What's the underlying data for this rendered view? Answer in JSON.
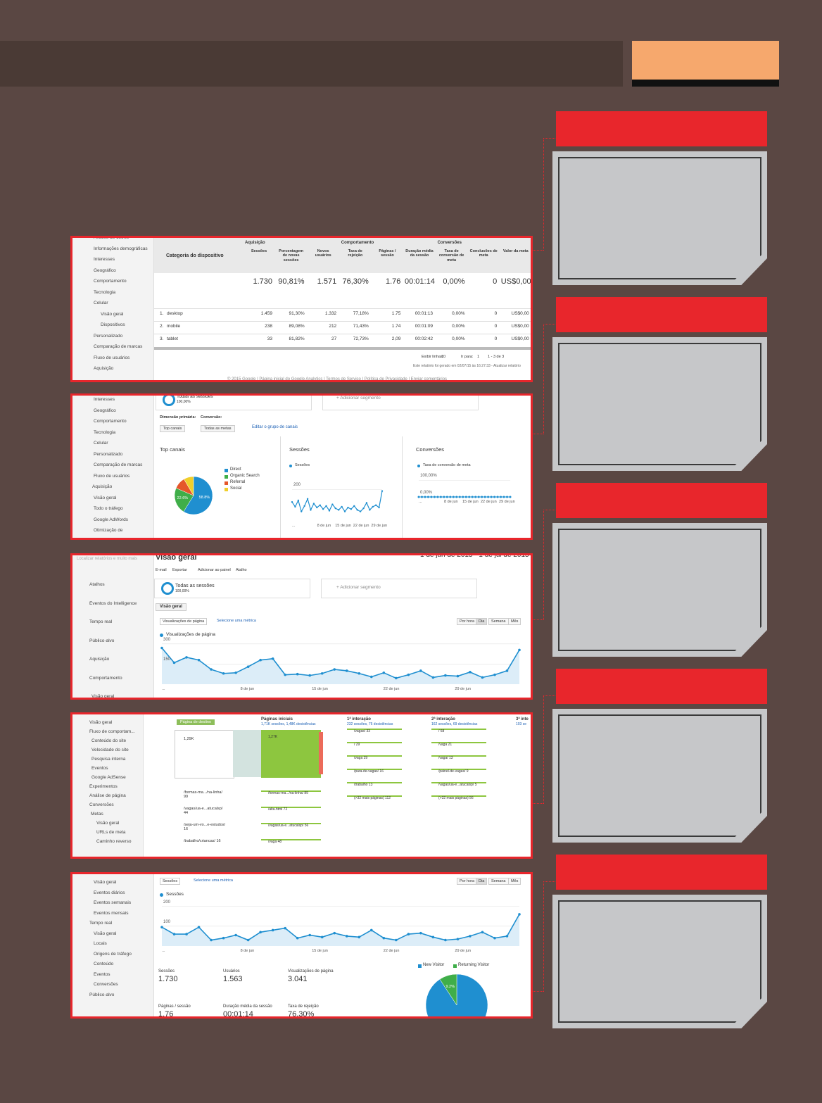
{
  "panel_table": {
    "sidebar": [
      "Análise de coorte",
      "Informações demográficas",
      "Interesses",
      "Geográfico",
      "Comportamento",
      "Tecnologia",
      "Celular",
      "Visão geral",
      "Dispositivos",
      "Personalizado",
      "Comparação de marcas",
      "Fluxo de usuários",
      "Aquisição"
    ],
    "category_header": "Categoria do dispositivo",
    "groups": [
      "Aquisição",
      "Comportamento",
      "Conversões"
    ],
    "columns": [
      "Sessões",
      "Porcentagem de novas sessões",
      "Novos usuários",
      "Taxa de rejeição",
      "Páginas / sessão",
      "Duração média da sessão",
      "Taxa de conversão de meta",
      "Conclusões de meta",
      "Valor da meta"
    ],
    "totals": [
      "1.730",
      "90,81%",
      "1.571",
      "76,30%",
      "1.76",
      "00:01:14",
      "0,00%",
      "0",
      "US$0,00"
    ],
    "rows": [
      [
        "1.",
        "desktop",
        "1.459",
        "91,30%",
        "1.332",
        "77,18%",
        "1.75",
        "00:01:13",
        "0,00%",
        "0",
        "US$0,00"
      ],
      [
        "2.",
        "mobile",
        "238",
        "89,08%",
        "212",
        "71,43%",
        "1.74",
        "00:01:09",
        "0,00%",
        "0",
        "US$0,00"
      ],
      [
        "3.",
        "tablet",
        "33",
        "81,82%",
        "27",
        "72,73%",
        "2,09",
        "00:02:42",
        "0,00%",
        "0",
        "US$0,00"
      ]
    ],
    "footer": [
      "Exibir linhas:",
      "10",
      "Ir para:",
      "1",
      "1 - 3 de 3"
    ],
    "generated": "Este relatório foi gerado em 02/07/15 às 16:27:33 - Atualizar relatório",
    "copyright": "© 2015 Google | Página inicial do Google Analytics | Termos de Serviço | Política de Privacidade | Enviar comentários"
  },
  "panel_channels": {
    "sidebar": [
      "Interesses",
      "Geográfico",
      "Comportamento",
      "Tecnologia",
      "Celular",
      "Personalizado",
      "Comparação de marcas",
      "Fluxo de usuários",
      "Aquisição",
      "Visão geral",
      "Todo o tráfego",
      "Google AdWords",
      "Otimização de"
    ],
    "segment": "Todas as sessões",
    "segment_pct": "100,00%",
    "add_segment": "+ Adicionar segmento",
    "dimension_label": "Dimensão primária:",
    "conversion_label": "Conversão:",
    "dimension": "Top canais",
    "goal": "Todas as metas",
    "edit": "Editar o grupo de canais",
    "pie": {
      "type": "pie",
      "title": "Top canais",
      "categories": [
        "Direct",
        "Organic Search",
        "Referral",
        "Social"
      ],
      "values": [
        58.8,
        22.6,
        10.2,
        8.4
      ],
      "value_labels": [
        "58.8%",
        "22.6%",
        null,
        null
      ],
      "colors": [
        "#1f8fd0",
        "#3fae49",
        "#e5562a",
        "#f0cf2a"
      ]
    },
    "sessions": {
      "type": "line",
      "title": "Sessões",
      "legend": "Sessões",
      "color": "#1f8fd0",
      "ylim": [
        0,
        260
      ],
      "yticks": [
        200
      ],
      "xlabels": [
        "...",
        "8 de jun",
        "15 de jun",
        "22 de jun",
        "29 de jun"
      ],
      "values": [
        120,
        90,
        130,
        60,
        95,
        140,
        70,
        110,
        85,
        100,
        75,
        95,
        65,
        105,
        80,
        70,
        90,
        60,
        85,
        75,
        95,
        70,
        60,
        80,
        115,
        70,
        90,
        100,
        85,
        190
      ]
    },
    "conversions": {
      "type": "line",
      "title": "Conversões",
      "legend": "Taxa de conversão de meta",
      "color": "#1f8fd0",
      "ylim": [
        0,
        110
      ],
      "yticks": [
        {
          "value": 100,
          "label": "100,00%"
        },
        {
          "value": 0,
          "label": "0,00%"
        }
      ],
      "xlabels": [
        "...",
        "8 de jun",
        "15 de jun",
        "22 de jun",
        "29 de jun"
      ],
      "values": [
        0,
        0,
        0,
        0,
        0,
        0,
        0,
        0,
        0,
        0,
        0,
        0,
        0,
        0,
        0,
        0,
        0,
        0,
        0,
        0,
        0,
        0,
        0,
        0,
        0,
        0,
        0,
        0,
        0,
        0
      ]
    }
  },
  "panel_pageviews": {
    "search": "Localizar relatórios e muito mais",
    "title": "Visão geral",
    "date": "1 de jun de 2015 - 1 de jul de 2015",
    "menu": [
      "E-mail",
      "Exportar",
      "Adicionar ao painel",
      "Atalho"
    ],
    "sidebar": [
      "Atalhos",
      "Eventos do Intelligence",
      "Tempo real",
      "Público-alvo",
      "Aquisição",
      "Comportamento",
      "Visão geral"
    ],
    "segment": "Todas as sessões",
    "segment_pct": "100,00%",
    "add_segment": "+ Adicionar segmento",
    "tab": "Visão geral",
    "metric": "Visualizações de página",
    "select_metric": "Selecione uma métrica",
    "buttons": [
      "Por hora",
      "Dia",
      "Semana",
      "Mês"
    ],
    "chart": {
      "type": "line",
      "legend": "Visualizações de página",
      "color": "#1f8fd0",
      "ylim": [
        0,
        320
      ],
      "yticks": [
        300,
        150
      ],
      "xlabels": [
        "...",
        "8 de jun",
        "15 de jun",
        "22 de jun",
        "29 de jun"
      ],
      "values": [
        270,
        160,
        200,
        180,
        110,
        80,
        85,
        130,
        180,
        190,
        70,
        75,
        65,
        80,
        110,
        100,
        80,
        55,
        85,
        45,
        70,
        100,
        50,
        65,
        60,
        90,
        50,
        70,
        100,
        255
      ]
    }
  },
  "panel_flow": {
    "sidebar": [
      "Visão geral",
      "Fluxo de comportam...",
      "Conteúdo do site",
      "Velocidade do site",
      "Pesquisa interna",
      "Eventos",
      "Google AdSense",
      "Experimentos",
      "Análise de página",
      "Conversões",
      "Metas",
      "Visão geral",
      "URLs de meta",
      "Caminho reverso"
    ],
    "dimension": "Página de destino",
    "sources": [
      "1,29K",
      "/formas-ma.../na-linha/ 99",
      "/vagas/ua-e...atucalsp/ 44",
      "/seja-um-vo...e-estudos/ 16",
      "/trabalho/criancas/ 16"
    ],
    "columns": [
      {
        "title": "Páginas iniciais",
        "subtitle": "1,71K sessões, 1,48K desistências",
        "nodes": [
          "1,27K",
          "/formas-ma.../na-linha/ 89",
          "/alta.html 72",
          "/vagas/ua-e...atucalsp/ 56",
          "/vaga 48"
        ]
      },
      {
        "title": "1ª interação",
        "subtitle": "232 sessões, 76 desistências",
        "nodes": [
          "/vagas/ 33",
          "/ 29",
          "/vaga 29",
          "/para-de-vagas/ 16",
          "/trabalho 13",
          "(>32 mais páginas) 112"
        ]
      },
      {
        "title": "2ª interação",
        "subtitle": "162 sessões, 69 desistências",
        "nodes": [
          "/ 68",
          "/vaga 21",
          "/vaga/ 13",
          "/painel-de-vagas/ 9",
          "/vagas/ua-e...atucalsp/ 5",
          "(>32 mais páginas) 56"
        ]
      },
      {
        "title": "3ª inte",
        "subtitle": "103 se",
        "nodes": []
      }
    ]
  },
  "panel_overview": {
    "sidebar": [
      "Visão geral",
      "Eventos diários",
      "Eventos semanais",
      "Eventos mensais",
      "Tempo real",
      "Visão geral",
      "Locais",
      "Origens de tráfego",
      "Conteúdo",
      "Eventos",
      "Conversões",
      "Público-alvo"
    ],
    "metric": "Sessões",
    "select_metric": "Selecione uma métrica",
    "buttons": [
      "Por hora",
      "Dia",
      "Semana",
      "Mês"
    ],
    "chart": {
      "type": "line",
      "legend": "Sessões",
      "color": "#1f8fd0",
      "ylim": [
        0,
        220
      ],
      "yticks": [
        200,
        100
      ],
      "xlabels": [
        "...",
        "8 de jun",
        "15 de jun",
        "22 de jun",
        "29 de jun"
      ],
      "values": [
        95,
        60,
        60,
        95,
        30,
        40,
        55,
        30,
        70,
        80,
        90,
        40,
        55,
        45,
        65,
        50,
        45,
        80,
        40,
        30,
        60,
        65,
        45,
        30,
        35,
        50,
        70,
        40,
        50,
        160
      ]
    },
    "metrics": [
      {
        "name": "Sessões",
        "value": "1.730"
      },
      {
        "name": "Usuários",
        "value": "1.563"
      },
      {
        "name": "Visualizações de página",
        "value": "3.041"
      },
      {
        "name": "Páginas / sessão",
        "value": "1.76"
      },
      {
        "name": "Duração média da sessão",
        "value": "00:01:14"
      },
      {
        "name": "Taxa de rejeição",
        "value": "76,30%"
      }
    ],
    "pie": {
      "type": "pie",
      "categories": [
        "New Visitor",
        "Returning Visitor"
      ],
      "values": [
        90.8,
        9.2
      ],
      "value_labels": [
        null,
        "9.2%"
      ],
      "colors": [
        "#1f8fd0",
        "#3fae49"
      ]
    }
  }
}
